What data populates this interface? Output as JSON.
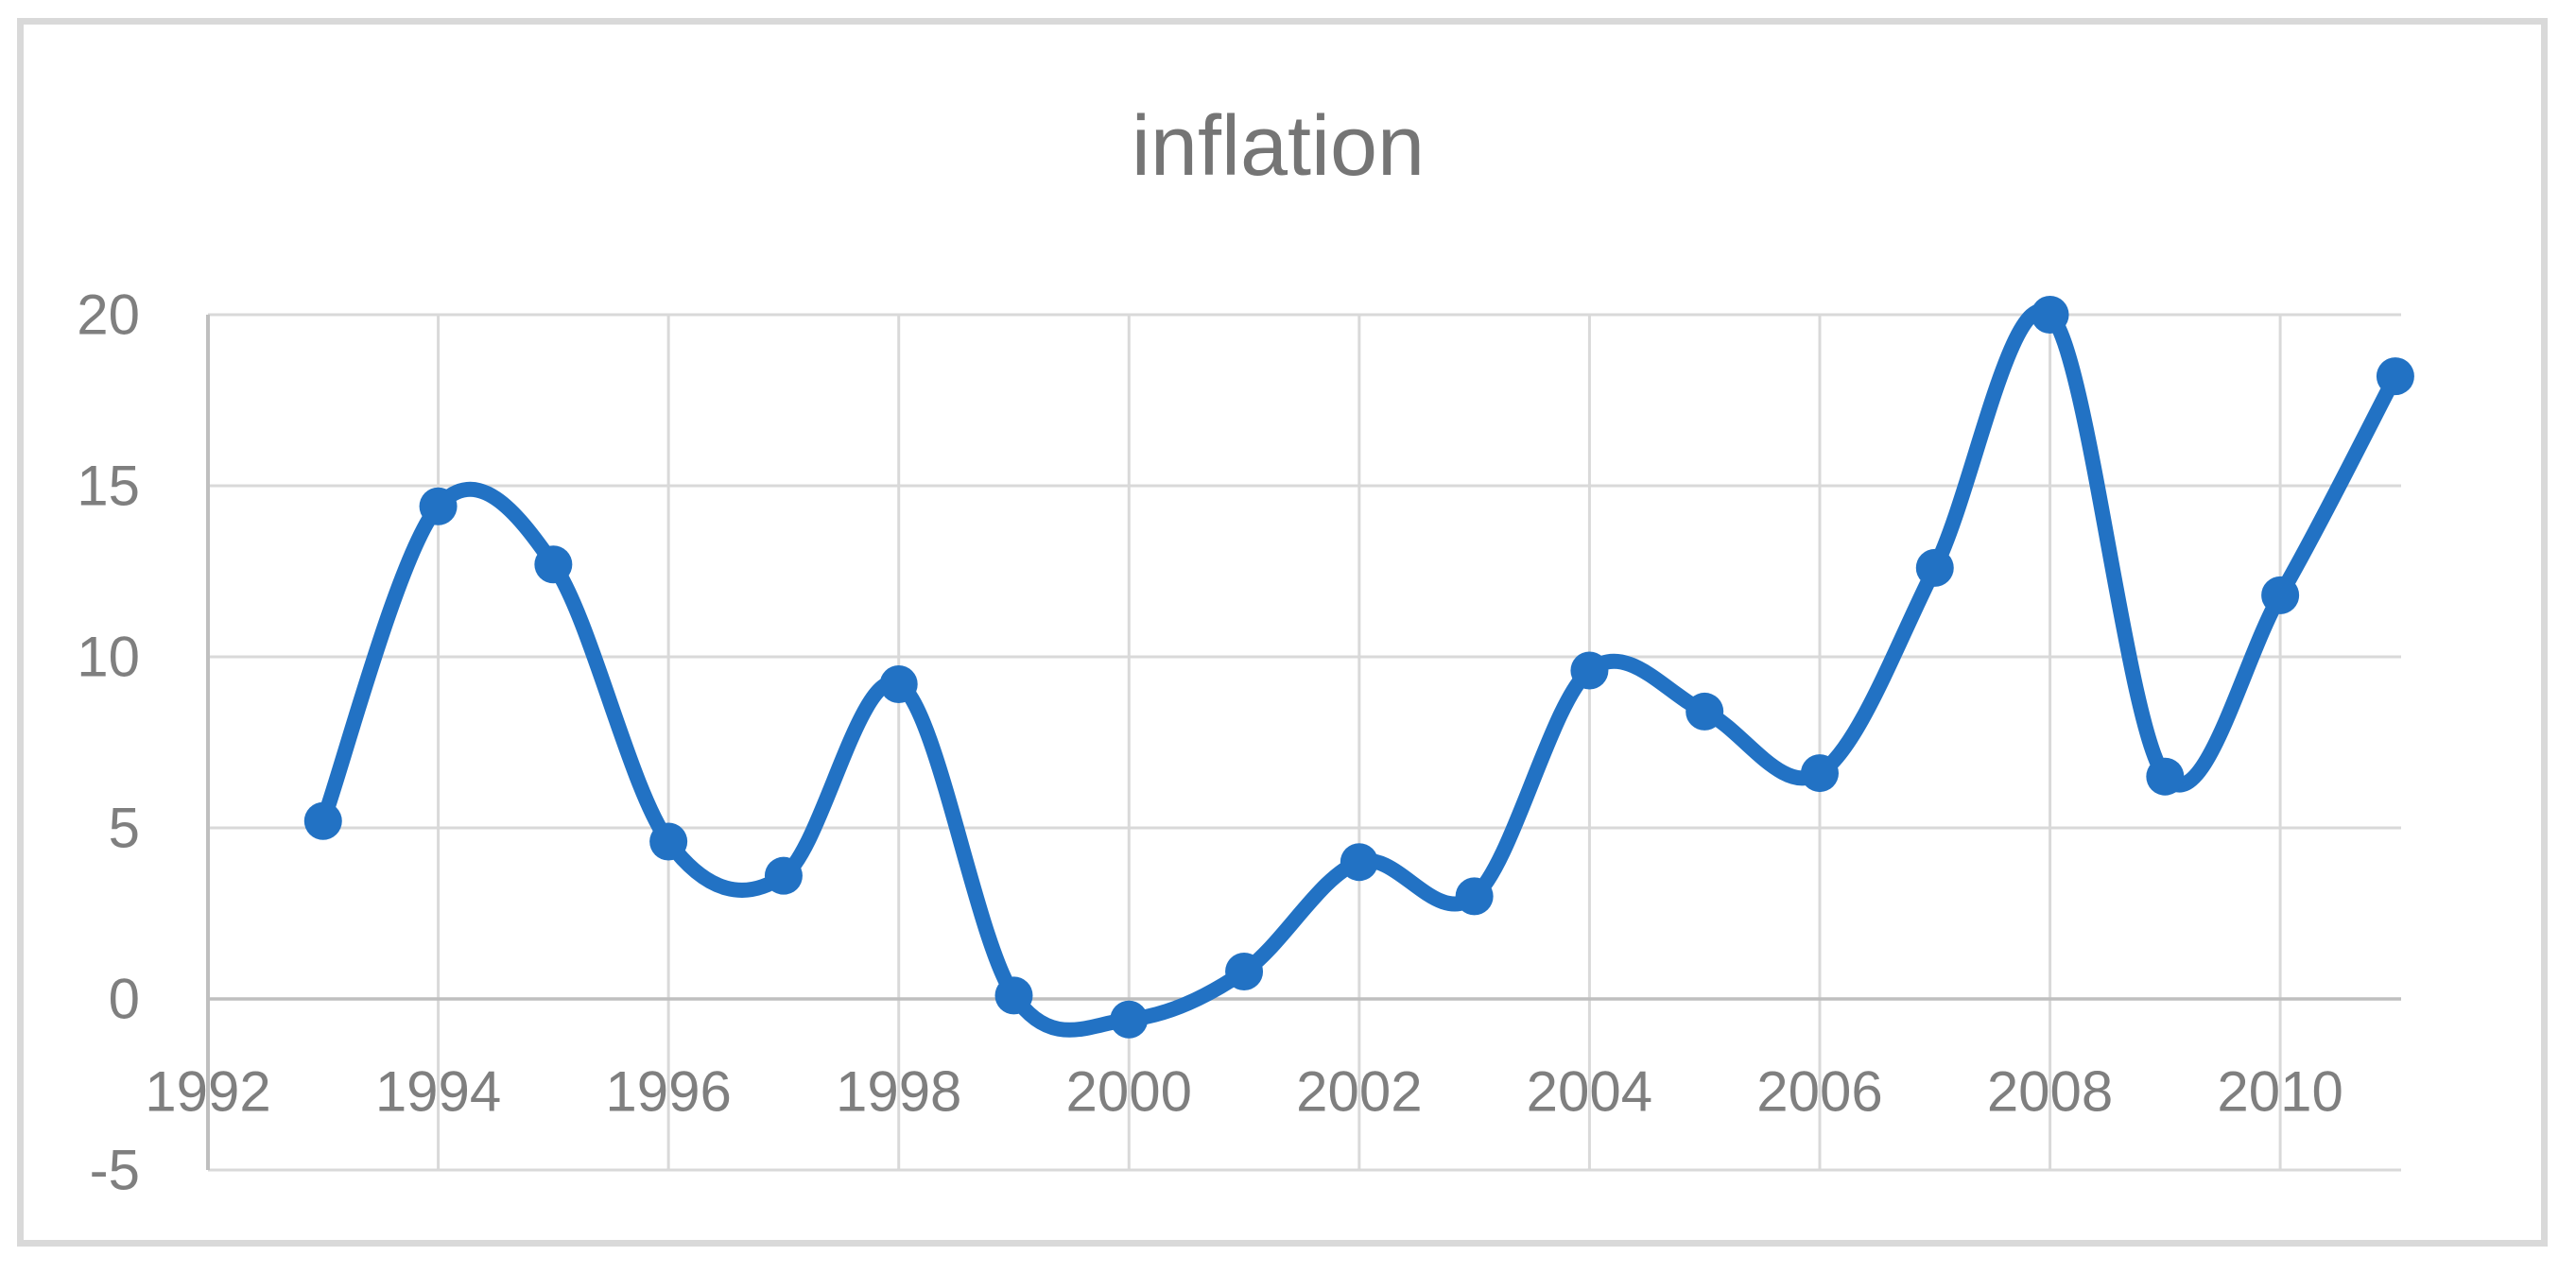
{
  "chart_data": {
    "type": "line",
    "title": "inflation",
    "smooth": true,
    "marker": "circle",
    "grid": true,
    "legend": "none",
    "xlim": [
      1992,
      2011.05
    ],
    "ylim": [
      -5,
      20
    ],
    "x_axis_ticks": [
      1992,
      1994,
      1996,
      1998,
      2000,
      2002,
      2004,
      2006,
      2008,
      2010
    ],
    "y_axis_ticks": [
      20,
      15,
      10,
      5,
      0,
      -5
    ],
    "series": [
      {
        "name": "inflation",
        "x": [
          1993,
          1994,
          1995,
          1996,
          1997,
          1998,
          1999,
          2000,
          2001,
          2002,
          2003,
          2004,
          2005,
          2006,
          2007,
          2008,
          2009,
          2010,
          2011
        ],
        "values": [
          5.2,
          14.4,
          12.7,
          4.6,
          3.6,
          9.2,
          0.1,
          -0.6,
          0.8,
          4.0,
          3.0,
          9.6,
          8.4,
          6.6,
          12.6,
          20.0,
          6.5,
          11.8,
          18.2
        ]
      }
    ],
    "colors": {
      "line": "#2272C4",
      "gridline": "#D9D9D9",
      "axis": "#BFBFBF",
      "tick_text": "#7F7F7F",
      "title_text": "#757575",
      "frame_border": "#D9D9D9"
    }
  }
}
